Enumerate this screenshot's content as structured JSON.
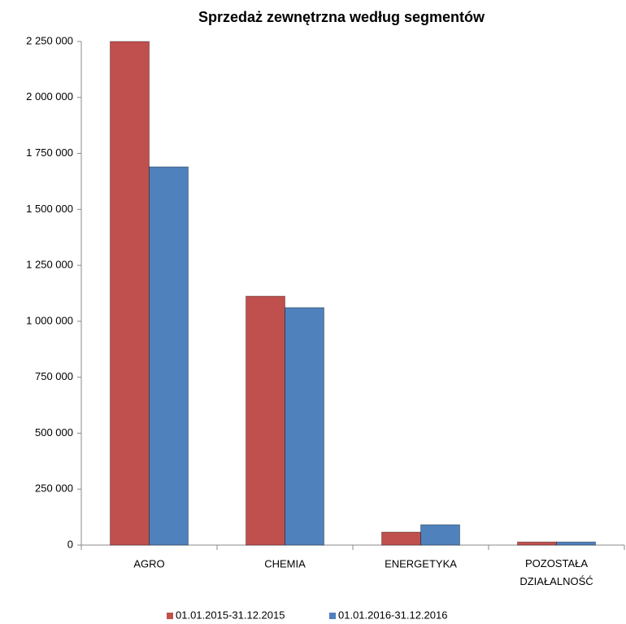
{
  "chart_data": {
    "type": "bar",
    "title": "Sprzedaż zewnętrzna według segmentów",
    "categories": [
      "AGRO",
      "CHEMIA",
      "ENERGETYKA",
      "POZOSTAŁA DZIAŁALNOŚĆ"
    ],
    "series": [
      {
        "name": "01.01.2015-31.12.2015",
        "color": "#c0504d",
        "values": [
          2250000,
          1112000,
          58000,
          14000
        ]
      },
      {
        "name": "01.01.2016-31.12.2016",
        "color": "#4f81bd",
        "values": [
          1690000,
          1061000,
          91000,
          14000
        ]
      }
    ],
    "ylim": [
      0,
      2250000
    ],
    "yticks": [
      0,
      {
        "value": 250000,
        "label": "250 000"
      },
      {
        "value": 500000,
        "label": "500 000"
      },
      {
        "value": 750000,
        "label": "750 000"
      },
      {
        "value": 1000000,
        "label": "1 000 000"
      },
      {
        "value": 1250000,
        "label": "1 250 000"
      },
      {
        "value": 1500000,
        "label": "1 500 000"
      },
      {
        "value": 1750000,
        "label": "1 750 000"
      },
      {
        "value": 2000000,
        "label": "2 000 000"
      },
      {
        "value": 2250000,
        "label": "2 250 000"
      }
    ],
    "grid": false,
    "legend": "bottom"
  }
}
